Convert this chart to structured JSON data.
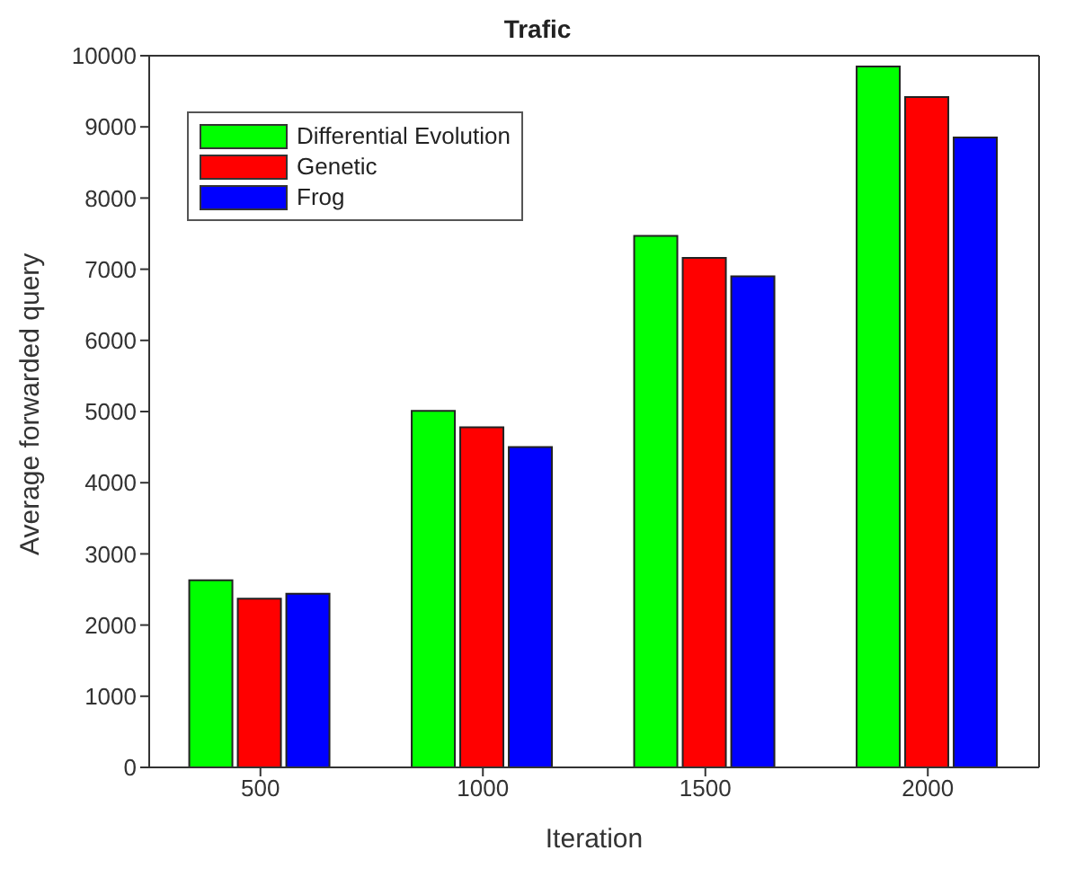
{
  "chart_data": {
    "type": "bar",
    "title": "Trafic",
    "xlabel": "Iteration",
    "ylabel": "Average forwarded query",
    "categories": [
      "500",
      "1000",
      "1500",
      "2000"
    ],
    "series": [
      {
        "name": "Differential Evolution",
        "color": "#00ff00",
        "values": [
          2630,
          5010,
          7470,
          9850
        ]
      },
      {
        "name": "Genetic",
        "color": "#ff0000",
        "values": [
          2370,
          4780,
          7160,
          9420
        ]
      },
      {
        "name": "Frog",
        "color": "#0000ff",
        "values": [
          2440,
          4500,
          6900,
          8850
        ]
      }
    ],
    "ylim": [
      0,
      10000
    ],
    "yticks": [
      0,
      1000,
      2000,
      3000,
      4000,
      5000,
      6000,
      7000,
      8000,
      9000,
      10000
    ],
    "grid": false,
    "legend": "top left"
  }
}
